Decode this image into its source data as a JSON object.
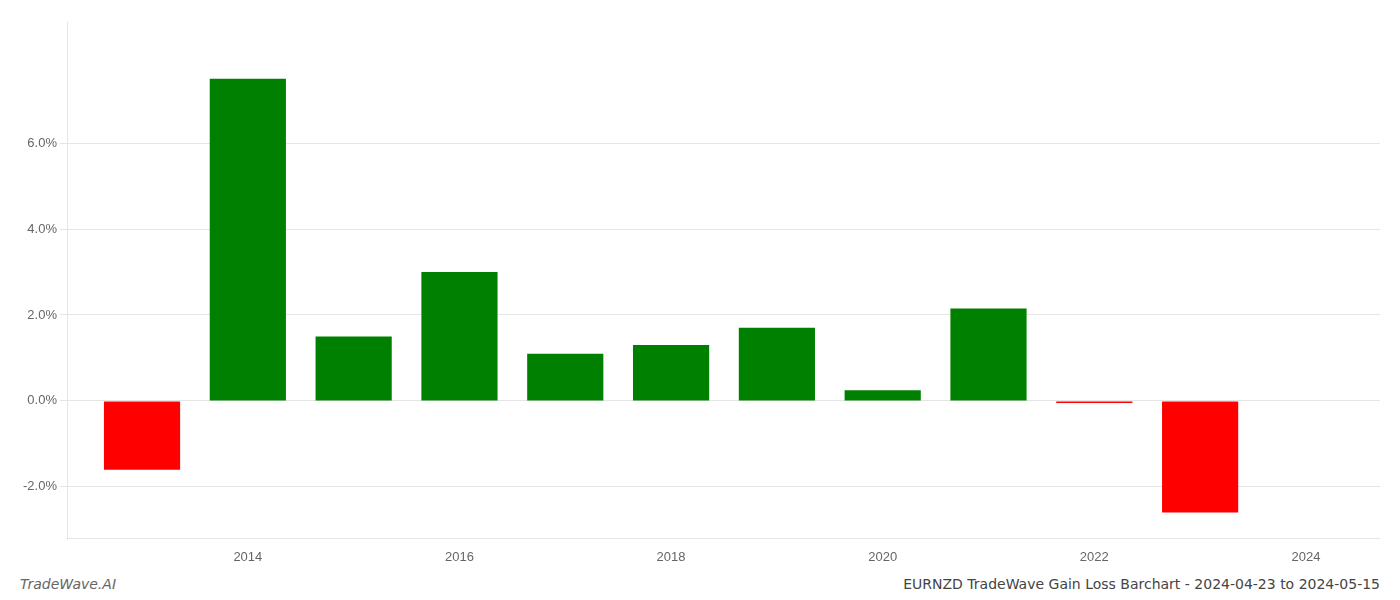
{
  "chart_data": {
    "type": "bar",
    "title": "EURNZD TradeWave Gain Loss Barchart - 2024-04-23 to 2024-05-15",
    "annotations": [
      "TradeWave.AI"
    ],
    "x": [
      2013,
      2014,
      2015,
      2016,
      2017,
      2018,
      2019,
      2020,
      2021,
      2022,
      2023
    ],
    "values": [
      -1.6,
      7.5,
      1.5,
      3.0,
      1.1,
      1.3,
      1.7,
      0.25,
      2.15,
      -0.05,
      -2.6
    ],
    "colors": [
      "#ff0000",
      "#008000",
      "#008000",
      "#008000",
      "#008000",
      "#008000",
      "#008000",
      "#008000",
      "#008000",
      "#ff0000",
      "#ff0000"
    ],
    "xlim": [
      2012.3,
      2024.7
    ],
    "xticks": [
      2014,
      2016,
      2018,
      2020,
      2022,
      2024
    ],
    "ylim": [
      -3.2,
      8.8
    ],
    "yticks": [
      {
        "value": -2.0,
        "label": "-2.0%"
      },
      {
        "value": 0.0,
        "label": "0.0%"
      },
      {
        "value": 2.0,
        "label": "2.0%"
      },
      {
        "value": 4.0,
        "label": "4.0%"
      },
      {
        "value": 6.0,
        "label": "6.0%"
      }
    ],
    "grid": true
  }
}
